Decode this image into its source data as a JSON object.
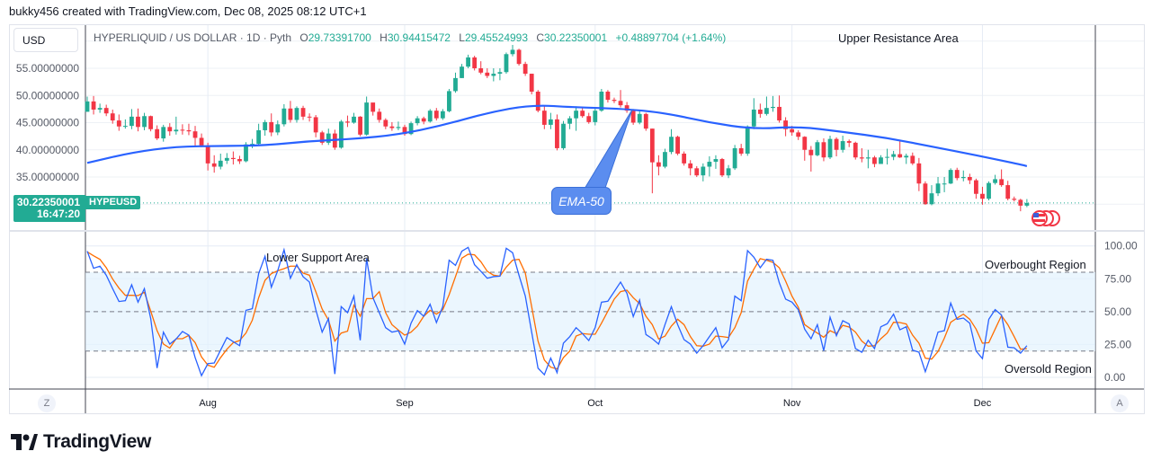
{
  "header": {
    "credit": "bukky456 created with TradingView.com, Dec 08, 2025 08:12 UTC+1"
  },
  "currency_button": "USD",
  "legend": {
    "title": "HYPERLIQUID / US DOLLAR · 1D · Pyth",
    "o_label": "O",
    "o": "29.73391700",
    "h_label": "H",
    "h": "30.94415472",
    "l_label": "L",
    "l": "29.45524993",
    "c_label": "C",
    "c": "30.22350001",
    "change": "+0.48897704 (+1.64%)"
  },
  "last_price": {
    "price": "30.22350001",
    "countdown": "16:47:20",
    "ticker": "HYPEUSD"
  },
  "annotations": {
    "upper": "Upper Resistance Area",
    "ema": "EMA-50",
    "lower": "Lower Support Area",
    "overbought": "Overbought Region",
    "oversold": "Oversold Region"
  },
  "buttons": {
    "z": "Z",
    "a": "A"
  },
  "logo": "TradingView",
  "colors": {
    "up": "#22ab94",
    "down": "#f23645",
    "ema": "#2962ff",
    "stoch_k": "#2962ff",
    "stoch_d": "#ff6d00",
    "band": "#e3f2fd",
    "price_label": "#22ab94"
  },
  "icons": {
    "flags": "us-flag-icon"
  },
  "chart_data": [
    {
      "type": "candlestick",
      "interval": "1D",
      "start_date": "2025-07-13",
      "end_date": "2025-12-08",
      "first_open": 47.0,
      "close": [
        48.9,
        47.4,
        47.7,
        46.7,
        45.4,
        44.3,
        44.4,
        46.1,
        44.2,
        46.2,
        43.8,
        42.1,
        44.2,
        43.4,
        43.7,
        43.6,
        43.4,
        42.2,
        40.8,
        37.5,
        36.9,
        38.0,
        38.5,
        38.3,
        37.9,
        41.0,
        41.1,
        43.6,
        45.1,
        43.2,
        44.7,
        47.6,
        45.5,
        47.7,
        46.1,
        46.0,
        43.2,
        41.3,
        43.0,
        40.4,
        45.2,
        45.0,
        46.1,
        42.8,
        48.7,
        47.0,
        45.5,
        44.3,
        44.0,
        44.2,
        42.9,
        44.9,
        45.8,
        45.2,
        47.2,
        45.8,
        47.1,
        50.8,
        53.2,
        55.3,
        57.0,
        55.0,
        54.2,
        53.6,
        54.0,
        54.3,
        57.6,
        58.4,
        55.8,
        54.0,
        50.7,
        47.2,
        44.6,
        45.6,
        40.3,
        44.8,
        45.8,
        47.2,
        46.2,
        45.1,
        47.2,
        50.7,
        49.2,
        49.0,
        48.2,
        47.2,
        45.0,
        46.6,
        43.9,
        37.7,
        36.9,
        39.6,
        42.4,
        39.3,
        37.5,
        36.6,
        35.3,
        36.9,
        37.8,
        38.3,
        35.3,
        36.6,
        40.3,
        39.3,
        44.3,
        47.4,
        46.6,
        47.7,
        47.9,
        45.4,
        43.8,
        43.2,
        42.4,
        40.0,
        39.0,
        41.4,
        38.6,
        42.0,
        40.0,
        41.6,
        41.3,
        38.6,
        38.4,
        38.6,
        37.4,
        38.6,
        38.7,
        39.2,
        38.6,
        38.9,
        37.5,
        33.8,
        30.0,
        32.0,
        33.8,
        33.8,
        36.3,
        34.8,
        35.0,
        34.4,
        31.9,
        31.0,
        33.9,
        34.6,
        33.5,
        31.0,
        30.8,
        29.73,
        30.22
      ],
      "high": [
        49.8,
        49.9,
        48.5,
        48.3,
        47.4,
        46.5,
        45.6,
        47.5,
        47.6,
        46.8,
        46.3,
        44.5,
        44.6,
        44.9,
        46.1,
        44.7,
        44.8,
        44.4,
        43.0,
        41.3,
        39.0,
        39.3,
        39.4,
        39.7,
        38.9,
        41.4,
        42.0,
        44.8,
        45.5,
        46.7,
        45.4,
        48.4,
        49.0,
        48.0,
        48.1,
        46.7,
        46.4,
        43.5,
        43.9,
        43.7,
        45.5,
        46.3,
        46.8,
        46.2,
        49.8,
        48.2,
        47.6,
        45.8,
        45.1,
        45.2,
        44.6,
        45.2,
        46.2,
        46.1,
        47.5,
        47.7,
        47.5,
        51.2,
        54.2,
        55.8,
        57.5,
        57.3,
        56.3,
        55.0,
        55.0,
        55.0,
        57.9,
        59.3,
        58.6,
        56.2,
        54.0,
        51.0,
        48.0,
        46.8,
        46.5,
        45.3,
        46.2,
        48.0,
        47.8,
        46.8,
        47.7,
        51.2,
        51.0,
        49.6,
        51.0,
        48.8,
        47.5,
        47.1,
        46.8,
        43.9,
        39.0,
        40.2,
        43.8,
        42.6,
        39.7,
        38.1,
        37.0,
        37.5,
        38.8,
        39.0,
        38.5,
        37.2,
        40.9,
        41.1,
        44.5,
        49.5,
        48.5,
        49.8,
        49.9,
        50.0,
        46.0,
        44.4,
        43.6,
        42.5,
        40.7,
        41.8,
        42.1,
        42.6,
        42.3,
        42.6,
        41.9,
        41.5,
        40.3,
        40.0,
        38.9,
        39.0,
        40.2,
        39.8,
        41.6,
        39.3,
        39.5,
        38.5,
        34.2,
        33.5,
        35.0,
        35.0,
        36.6,
        36.7,
        36.2,
        35.6,
        34.7,
        33.2,
        34.2,
        35.4,
        36.4,
        34.3,
        31.4,
        31.0,
        30.94
      ],
      "low": [
        47.0,
        46.5,
        46.8,
        46.2,
        44.8,
        43.5,
        43.9,
        43.8,
        43.4,
        43.6,
        43.4,
        41.8,
        41.5,
        42.6,
        42.8,
        42.8,
        42.7,
        40.7,
        40.5,
        36.2,
        35.8,
        36.4,
        37.4,
        37.3,
        37.4,
        37.7,
        40.3,
        40.8,
        42.6,
        42.5,
        42.7,
        44.3,
        45.0,
        45.0,
        45.5,
        45.2,
        42.3,
        40.9,
        40.9,
        40.0,
        40.2,
        44.2,
        44.8,
        42.5,
        42.6,
        46.3,
        45.0,
        43.8,
        43.5,
        43.6,
        42.6,
        42.7,
        44.5,
        44.7,
        45.0,
        45.4,
        45.5,
        46.9,
        50.5,
        53.2,
        55.0,
        54.6,
        53.9,
        53.2,
        52.6,
        52.8,
        54.0,
        57.2,
        55.5,
        53.6,
        50.2,
        46.9,
        43.8,
        43.8,
        39.9,
        40.0,
        43.8,
        43.5,
        45.9,
        44.8,
        44.5,
        47.0,
        48.7,
        48.6,
        47.8,
        46.8,
        44.6,
        44.7,
        43.5,
        32.0,
        35.3,
        36.6,
        39.2,
        39.0,
        37.1,
        35.3,
        35.0,
        34.2,
        35.1,
        36.5,
        35.0,
        34.8,
        36.3,
        38.9,
        38.9,
        43.8,
        45.9,
        46.3,
        47.0,
        45.0,
        42.5,
        42.6,
        41.8,
        38.0,
        36.0,
        38.8,
        37.9,
        38.3,
        38.8,
        39.5,
        40.5,
        38.2,
        37.7,
        36.6,
        36.8,
        37.7,
        37.3,
        38.1,
        38.5,
        37.4,
        37.2,
        32.4,
        29.9,
        29.8,
        31.5,
        32.2,
        33.7,
        34.4,
        34.2,
        33.7,
        31.0,
        29.9,
        30.7,
        33.6,
        33.2,
        30.7,
        30.5,
        28.7,
        29.45
      ],
      "ema50": {
        "label": "EMA-50",
        "every_n_days": 7,
        "values": [
          37.6,
          39.5,
          40.6,
          40.7,
          40.8,
          41.6,
          42.0,
          42.8,
          44.5,
          46.8,
          48.3,
          47.8,
          47.6,
          46.8,
          45.0,
          43.8,
          44.3,
          43.3,
          42.2,
          40.6,
          39.0,
          37.3
        ],
        "last": 37.0
      },
      "y_ticks": [
        "55.00000000",
        "50.00000000",
        "45.00000000",
        "40.00000000",
        "35.00000000"
      ],
      "y_tick_values": [
        55,
        50,
        45,
        40,
        35
      ],
      "x_ticks": [
        {
          "label": "Aug",
          "date": "2025-08-01"
        },
        {
          "label": "Sep",
          "date": "2025-09-01"
        },
        {
          "label": "Oct",
          "date": "2025-10-01"
        },
        {
          "label": "Nov",
          "date": "2025-11-01"
        },
        {
          "label": "Dec",
          "date": "2025-12-01"
        }
      ],
      "last_close": 30.2235,
      "grid": true
    },
    {
      "type": "line",
      "indicator": "stochastic",
      "ylim": [
        0,
        100
      ],
      "y_ticks": [
        "100.00",
        "75.00",
        "50.00",
        "25.00",
        "0.00"
      ],
      "y_tick_values": [
        100,
        75,
        50,
        25,
        0
      ],
      "band": [
        20,
        80
      ],
      "midline": 50,
      "k": [
        96.0,
        83.0,
        84.6,
        77.7,
        67.5,
        57.7,
        58.3,
        70.4,
        57.2,
        67.5,
        44.7,
        7.1,
        34.4,
        25.3,
        29.2,
        34.9,
        32.1,
        15.0,
        1.3,
        10.4,
        10.9,
        20.7,
        30.3,
        27.1,
        24.1,
        51.0,
        52.2,
        78.9,
        92.1,
        68.6,
        81.1,
        97.1,
        75.4,
        85.7,
        76.6,
        72.5,
        51.5,
        34.4,
        44.7,
        2.5,
        53.8,
        49.2,
        61.8,
        28.2,
        90.3,
        60.6,
        49.2,
        37.8,
        34.4,
        35.5,
        25.3,
        41.2,
        50.8,
        46.5,
        55.6,
        41.7,
        53.8,
        89.1,
        85.2,
        96.0,
        98.9,
        85.7,
        80.7,
        75.4,
        76.6,
        77.0,
        98.2,
        94.8,
        77.7,
        61.8,
        34.4,
        7.0,
        2.0,
        14.6,
        3.6,
        26.0,
        31.0,
        37.8,
        33.3,
        28.0,
        37.8,
        57.2,
        57.9,
        65.2,
        72.5,
        64.0,
        46.3,
        58.8,
        32.6,
        29.4,
        25.3,
        40.1,
        53.8,
        40.1,
        28.7,
        25.3,
        18.4,
        24.1,
        31.0,
        37.8,
        22.5,
        28.7,
        61.8,
        58.3,
        96.4,
        91.4,
        83.4,
        89.8,
        89.1,
        72.0,
        59.5,
        57.2,
        51.5,
        36.7,
        29.4,
        40.1,
        20.3,
        45.8,
        31.7,
        43.1,
        40.6,
        21.9,
        19.1,
        28.2,
        21.9,
        38.5,
        40.8,
        48.1,
        36.2,
        38.5,
        20.7,
        19.1,
        4.3,
        18.4,
        34.4,
        35.5,
        56.5,
        44.2,
        45.1,
        41.2,
        20.0,
        14.3,
        44.2,
        51.5,
        47.4,
        23.0,
        22.5,
        18.4,
        24.1
      ],
      "d": [
        95.5,
        92.5,
        89.8,
        83.4,
        74.8,
        67.9,
        62.4,
        62.4,
        62.2,
        64.7,
        50.4,
        35.5,
        25.3,
        22.3,
        29.4,
        29.4,
        31.9,
        26.4,
        15.5,
        9.3,
        7.7,
        15.0,
        21.4,
        26.4,
        28.0,
        33.7,
        43.5,
        60.6,
        73.8,
        78.9,
        81.1,
        82.7,
        84.6,
        84.6,
        79.3,
        77.7,
        65.2,
        52.0,
        43.5,
        27.6,
        33.7,
        35.1,
        54.9,
        46.5,
        59.9,
        59.9,
        65.2,
        49.2,
        40.1,
        36.0,
        32.1,
        34.4,
        39.0,
        46.5,
        51.0,
        48.1,
        51.5,
        62.9,
        76.6,
        90.7,
        93.7,
        93.2,
        88.0,
        80.7,
        77.7,
        77.0,
        83.9,
        89.1,
        89.8,
        79.3,
        53.8,
        27.6,
        13.2,
        7.7,
        6.4,
        15.0,
        20.0,
        31.4,
        33.3,
        32.8,
        32.8,
        41.2,
        50.4,
        59.5,
        65.2,
        66.3,
        60.6,
        56.1,
        46.5,
        40.1,
        29.2,
        31.4,
        39.0,
        44.2,
        40.1,
        31.0,
        24.1,
        23.7,
        25.3,
        31.4,
        31.0,
        30.3,
        37.8,
        49.2,
        73.2,
        82.3,
        90.3,
        89.1,
        87.5,
        83.4,
        73.2,
        61.8,
        53.3,
        40.1,
        36.7,
        33.7,
        30.5,
        35.5,
        33.3,
        39.6,
        38.3,
        34.4,
        27.6,
        23.7,
        24.1,
        29.4,
        33.7,
        41.9,
        41.7,
        40.6,
        32.1,
        26.0,
        14.6,
        13.9,
        19.6,
        29.8,
        41.9,
        45.1,
        48.1,
        44.2,
        36.7,
        26.0,
        26.4,
        36.7,
        47.0,
        40.1,
        31.0,
        21.4,
        21.9
      ]
    }
  ]
}
